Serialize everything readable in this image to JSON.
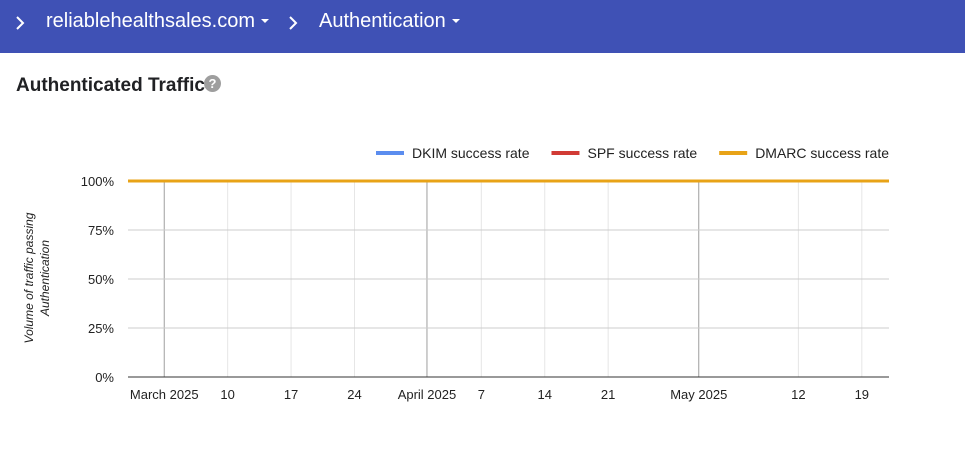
{
  "header": {
    "domain_label": "reliablehealthsales.com",
    "section_label": "Authentication"
  },
  "page": {
    "title": "Authenticated Traffic",
    "help_glyph": "?"
  },
  "icons": [
    "chevron-right-icon",
    "caret-down-icon",
    "help-icon"
  ],
  "colors": {
    "header_bg": "#3f51b5",
    "dkim": "#5b8def",
    "spf": "#d13b35",
    "dmarc": "#e8a317"
  },
  "chart_data": {
    "type": "line",
    "ylabel_lines": [
      "Volume of traffic passing",
      "Authentication"
    ],
    "xlabel": "",
    "ylim": [
      0,
      100
    ],
    "y_ticks": [
      0,
      25,
      50,
      75,
      100
    ],
    "y_tick_labels": [
      "0%",
      "25%",
      "50%",
      "75%",
      "100%"
    ],
    "x_range": [
      "2025-02-27",
      "2025-05-22"
    ],
    "x_ticks": [
      {
        "date": "2025-03-03",
        "label": "March 2025",
        "major": true
      },
      {
        "date": "2025-03-10",
        "label": "10",
        "major": false
      },
      {
        "date": "2025-03-17",
        "label": "17",
        "major": false
      },
      {
        "date": "2025-03-24",
        "label": "24",
        "major": false
      },
      {
        "date": "2025-04-01",
        "label": "April 2025",
        "major": true
      },
      {
        "date": "2025-04-07",
        "label": "7",
        "major": false
      },
      {
        "date": "2025-04-14",
        "label": "14",
        "major": false
      },
      {
        "date": "2025-04-21",
        "label": "21",
        "major": false
      },
      {
        "date": "2025-05-01",
        "label": "May 2025",
        "major": true
      },
      {
        "date": "2025-05-12",
        "label": "12",
        "major": false
      },
      {
        "date": "2025-05-19",
        "label": "19",
        "major": false
      }
    ],
    "grid": true,
    "legend_position": "top-right",
    "series": [
      {
        "name": "DKIM success rate",
        "color": "#5b8def",
        "points": [
          [
            "2025-02-27",
            100
          ],
          [
            "2025-05-22",
            100
          ]
        ]
      },
      {
        "name": "SPF success rate",
        "color": "#d13b35",
        "points": [
          [
            "2025-02-27",
            100
          ],
          [
            "2025-05-22",
            100
          ]
        ]
      },
      {
        "name": "DMARC success rate",
        "color": "#e8a317",
        "points": [
          [
            "2025-02-27",
            100
          ],
          [
            "2025-05-22",
            100
          ]
        ]
      }
    ]
  }
}
